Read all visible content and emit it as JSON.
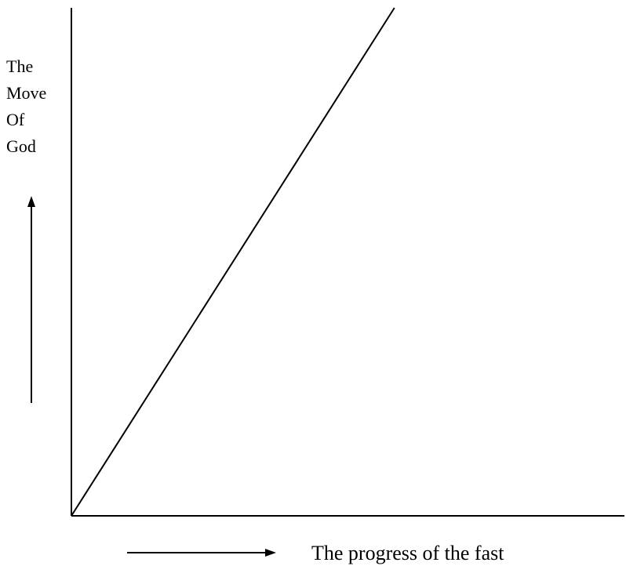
{
  "chart_data": {
    "type": "line",
    "title": "",
    "ylabel_lines": [
      "The",
      "Move",
      "Of",
      "God"
    ],
    "xlabel": "The progress of the fast",
    "x_ticks": false,
    "y_ticks": false,
    "grid": false,
    "legend": "none",
    "xlim": [
      0,
      10
    ],
    "ylim": [
      0,
      10
    ],
    "series": [
      {
        "x": [
          0,
          5.3
        ],
        "y": [
          0,
          10
        ]
      }
    ],
    "colors": {
      "line": "#000000",
      "axis": "#000000",
      "text": "#000000"
    }
  }
}
